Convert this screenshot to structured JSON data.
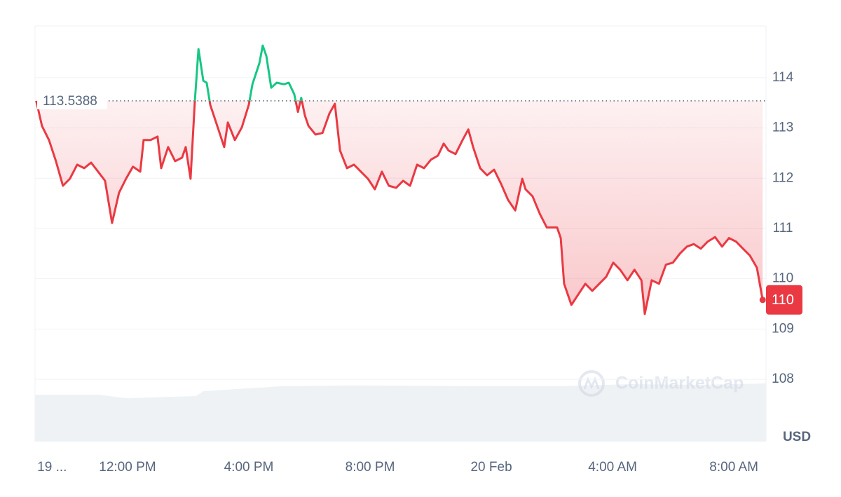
{
  "chart_data": {
    "type": "line",
    "x": [
      8.99,
      9.18,
      9.41,
      9.64,
      9.87,
      10.1,
      10.34,
      10.57,
      10.8,
      11.03,
      11.26,
      11.49,
      11.72,
      11.95,
      12.18,
      12.42,
      12.53,
      12.76,
      12.99,
      13.11,
      13.34,
      13.57,
      13.8,
      13.92,
      14.08,
      14.22,
      14.34,
      14.5,
      14.61,
      14.73,
      14.96,
      15.19,
      15.31,
      15.54,
      15.77,
      16.0,
      16.12,
      16.35,
      16.46,
      16.58,
      16.74,
      16.92,
      17.16,
      17.32,
      17.5,
      17.62,
      17.73,
      17.85,
      17.97,
      18.2,
      18.43,
      18.66,
      18.84,
      19.01,
      19.24,
      19.47,
      19.7,
      19.93,
      20.16,
      20.39,
      20.62,
      20.86,
      21.09,
      21.32,
      21.55,
      21.78,
      22.01,
      22.24,
      22.43,
      22.59,
      22.82,
      23.05,
      23.24,
      23.4,
      23.63,
      23.86,
      24.09,
      24.32,
      24.55,
      24.79,
      25.02,
      25.13,
      25.36,
      25.6,
      25.83,
      26.17,
      26.29,
      26.4,
      26.64,
      26.87,
      27.1,
      27.33,
      27.56,
      27.79,
      28.02,
      28.25,
      28.49,
      28.72,
      28.95,
      29.06,
      29.29,
      29.53,
      29.76,
      29.99,
      30.22,
      30.45,
      30.68,
      30.91,
      31.14,
      31.38,
      31.61,
      31.84,
      32.07,
      32.3,
      32.53,
      32.76,
      32.95
    ],
    "series": [
      {
        "values": [
          113.54,
          113.04,
          112.76,
          112.34,
          111.85,
          111.99,
          112.27,
          112.2,
          112.31,
          112.13,
          111.95,
          111.11,
          111.71,
          111.99,
          112.23,
          112.13,
          112.76,
          112.76,
          112.83,
          112.2,
          112.62,
          112.34,
          112.41,
          112.62,
          111.99,
          113.53,
          114.57,
          113.94,
          113.9,
          113.46,
          113.04,
          112.62,
          113.11,
          112.76,
          113.01,
          113.46,
          113.87,
          114.29,
          114.64,
          114.43,
          113.8,
          113.9,
          113.87,
          113.9,
          113.67,
          113.32,
          113.6,
          113.25,
          113.04,
          112.87,
          112.9,
          113.29,
          113.48,
          112.55,
          112.2,
          112.27,
          112.13,
          111.99,
          111.78,
          112.13,
          111.85,
          111.81,
          111.95,
          111.85,
          112.27,
          112.2,
          112.37,
          112.45,
          112.69,
          112.55,
          112.48,
          112.76,
          112.97,
          112.62,
          112.2,
          112.06,
          112.17,
          111.89,
          111.57,
          111.36,
          111.99,
          111.78,
          111.64,
          111.29,
          111.02,
          111.02,
          110.81,
          109.9,
          109.48,
          109.69,
          109.9,
          109.76,
          109.9,
          110.04,
          110.32,
          110.18,
          109.97,
          110.18,
          109.97,
          109.3,
          109.97,
          109.9,
          110.28,
          110.32,
          110.5,
          110.64,
          110.69,
          110.6,
          110.74,
          110.83,
          110.64,
          110.81,
          110.74,
          110.6,
          110.46,
          110.22,
          109.58
        ]
      }
    ],
    "up_color": "#16c784",
    "down_color": "#ea3943",
    "reference": {
      "value": 113.5388,
      "label": "113.5388"
    },
    "last_price_label": "110",
    "xlim": [
      8.95,
      33.06
    ],
    "xticks": [
      {
        "value": 9,
        "label": "19 ..."
      },
      {
        "value": 12,
        "label": "12:00 PM"
      },
      {
        "value": 16,
        "label": "4:00 PM"
      },
      {
        "value": 20,
        "label": "8:00 PM"
      },
      {
        "value": 24,
        "label": "20 Feb"
      },
      {
        "value": 28,
        "label": "4:00 AM"
      },
      {
        "value": 32,
        "label": "8:00 AM"
      }
    ],
    "ylim": [
      106.76,
      115.03
    ],
    "yticks": [
      108,
      109,
      110,
      111,
      112,
      113,
      114
    ],
    "y_unit": "USD",
    "watermark": "CoinMarketCap",
    "grid": true
  }
}
